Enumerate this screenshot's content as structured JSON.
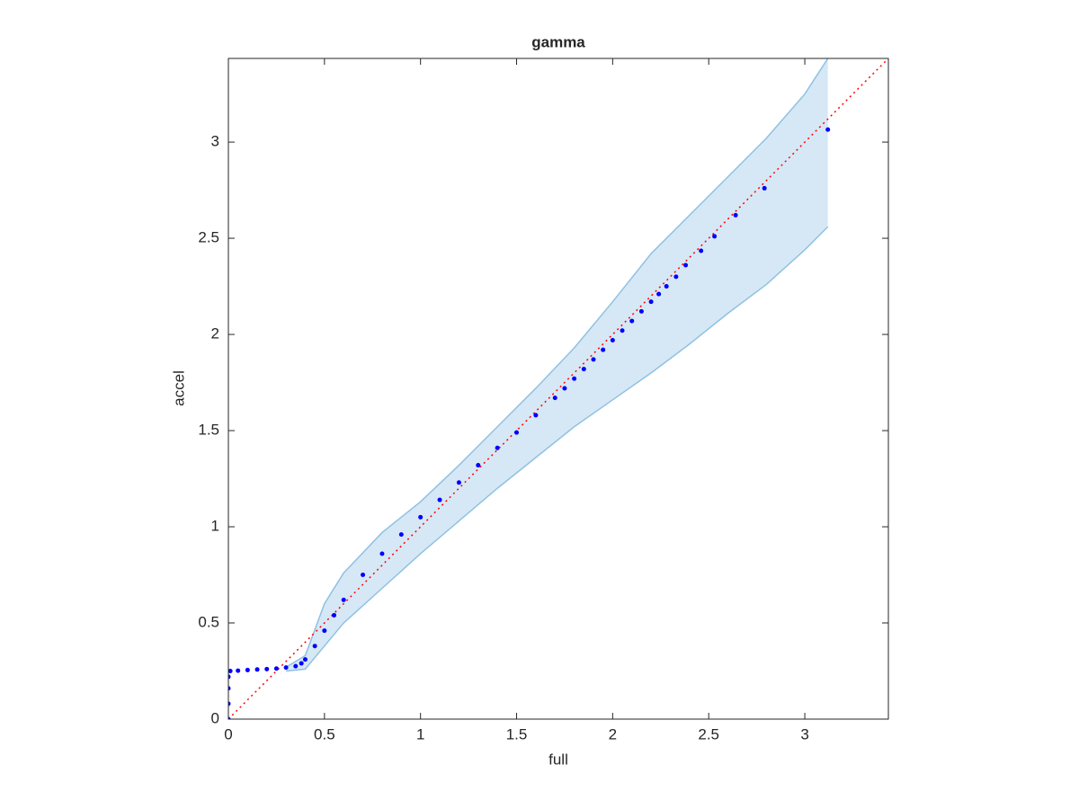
{
  "chart_data": {
    "type": "scatter",
    "title": "gamma",
    "xlabel": "full",
    "ylabel": "accel",
    "xlim": [
      0,
      3.435
    ],
    "ylim": [
      0,
      3.435
    ],
    "xticks": [
      0,
      0.5,
      1,
      1.5,
      2,
      2.5,
      3
    ],
    "yticks": [
      0,
      0.5,
      1,
      1.5,
      2,
      2.5,
      3
    ],
    "band": {
      "color": "#d6e8f5",
      "edge": "#8fc1e3",
      "x": [
        0.3,
        0.4,
        0.5,
        0.6,
        0.8,
        1.0,
        1.2,
        1.4,
        1.6,
        1.8,
        2.0,
        2.2,
        2.4,
        2.6,
        2.8,
        3.0,
        3.12
      ],
      "upper": [
        0.27,
        0.33,
        0.6,
        0.76,
        0.97,
        1.13,
        1.32,
        1.52,
        1.72,
        1.93,
        2.17,
        2.42,
        2.62,
        2.82,
        3.02,
        3.25,
        3.435
      ],
      "lower": [
        0.25,
        0.26,
        0.38,
        0.5,
        0.68,
        0.86,
        1.03,
        1.2,
        1.36,
        1.52,
        1.66,
        1.8,
        1.95,
        2.11,
        2.26,
        2.44,
        2.56
      ]
    },
    "reference": {
      "color": "#ff0000",
      "x": [
        0,
        3.435
      ],
      "y": [
        0,
        3.435
      ]
    },
    "points": {
      "color": "#0000ff",
      "x": [
        0,
        0,
        0,
        0,
        0.01,
        0.05,
        0.1,
        0.15,
        0.2,
        0.25,
        0.3,
        0.35,
        0.38,
        0.4,
        0.45,
        0.5,
        0.55,
        0.6,
        0.7,
        0.8,
        0.9,
        1.0,
        1.1,
        1.2,
        1.3,
        1.4,
        1.5,
        1.6,
        1.7,
        1.75,
        1.8,
        1.85,
        1.9,
        1.95,
        2.0,
        2.05,
        2.1,
        2.15,
        2.2,
        2.24,
        2.28,
        2.33,
        2.38,
        2.46,
        2.53,
        2.64,
        2.79,
        3.12
      ],
      "y": [
        0,
        0.08,
        0.16,
        0.22,
        0.25,
        0.252,
        0.255,
        0.258,
        0.26,
        0.263,
        0.268,
        0.275,
        0.29,
        0.31,
        0.38,
        0.46,
        0.54,
        0.62,
        0.75,
        0.86,
        0.96,
        1.05,
        1.14,
        1.23,
        1.32,
        1.41,
        1.49,
        1.58,
        1.67,
        1.72,
        1.77,
        1.82,
        1.87,
        1.92,
        1.97,
        2.02,
        2.07,
        2.12,
        2.17,
        2.21,
        2.25,
        2.3,
        2.36,
        2.435,
        2.51,
        2.62,
        2.76,
        3.065
      ]
    }
  }
}
